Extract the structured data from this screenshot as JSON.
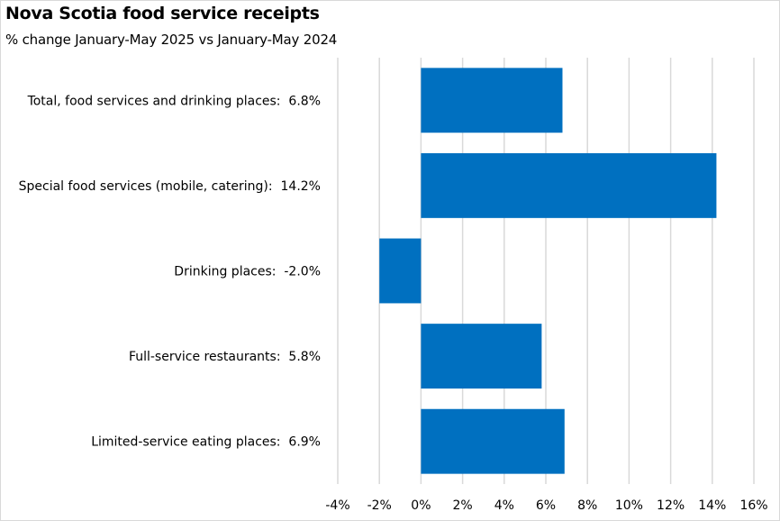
{
  "chart_data": {
    "type": "bar",
    "orientation": "horizontal",
    "title": "Nova Scotia food service receipts",
    "subtitle": "% change January-May 2025 vs January-May 2024",
    "categories": [
      "Total, food services and drinking places:  6.8%",
      "Special food services (mobile, catering):  14.2%",
      "Drinking places:  -2.0%",
      "Full-service restaurants:  5.8%",
      "Limited-service eating places:  6.9%"
    ],
    "values": [
      6.8,
      14.2,
      -2.0,
      5.8,
      6.9
    ],
    "xlabel": "",
    "ylabel": "",
    "xlim": [
      -4,
      16
    ],
    "xticks": [
      -4,
      -2,
      0,
      2,
      4,
      6,
      8,
      10,
      12,
      14,
      16
    ],
    "xtick_labels": [
      "-4%",
      "-2%",
      "0%",
      "2%",
      "4%",
      "6%",
      "8%",
      "10%",
      "12%",
      "14%",
      "16%"
    ],
    "grid": "vertical",
    "legend": "none",
    "bar_color": "#0070c0",
    "grid_color": "#d9d9d9"
  }
}
